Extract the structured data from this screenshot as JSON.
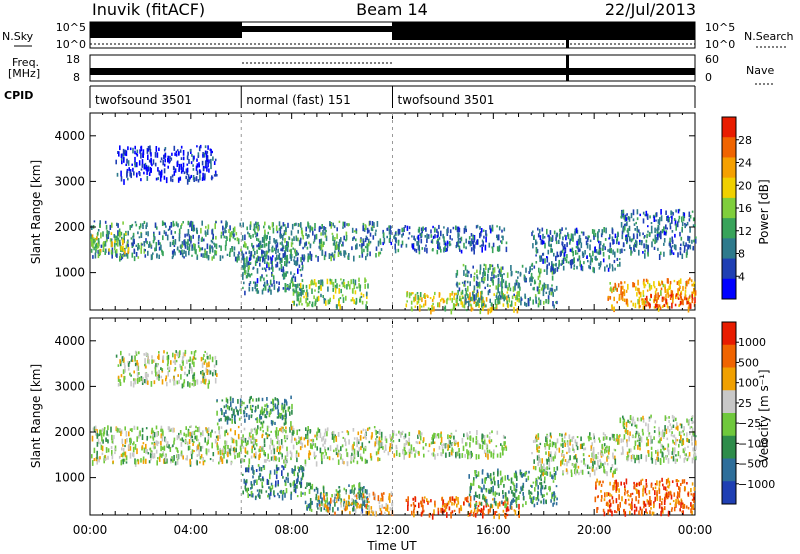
{
  "header": {
    "station": "Inuvik (fitACF)",
    "beam": "Beam 14",
    "date": "22/Jul/2013"
  },
  "noise_panel": {
    "left_label": "N.Sky",
    "left_ticks": [
      "10^5",
      "10^0"
    ],
    "right_label": "N.Search",
    "right_ticks": [
      "10^5",
      "10^0"
    ]
  },
  "freq_panel": {
    "left_label_line1": "Freq.",
    "left_label_line2": "[MHz]",
    "left_ticks": [
      "18",
      "8"
    ],
    "right_label": "Nave",
    "right_ticks": [
      "60",
      "0"
    ]
  },
  "cpid_panel": {
    "label": "CPID",
    "segments": [
      {
        "label": "twofsound 3501",
        "start_h": 0,
        "end_h": 6
      },
      {
        "label": "normal (fast) 151",
        "start_h": 6,
        "end_h": 12
      },
      {
        "label": "twofsound 3501",
        "start_h": 12,
        "end_h": 24
      }
    ]
  },
  "chart_data": [
    {
      "type": "heatmap",
      "name": "power",
      "ylabel": "Slant Range [km]",
      "yticks": [
        1000,
        2000,
        3000,
        4000
      ],
      "ylim": [
        180,
        4500
      ],
      "xlim": [
        0,
        24
      ],
      "colorbar": {
        "label": "Power [dB]",
        "ticks": [
          "28",
          "24",
          "20",
          "16",
          "12",
          "8",
          "4"
        ],
        "colors": [
          "#0000ff",
          "#1f3fb3",
          "#2e7a8c",
          "#38a35a",
          "#7fce3c",
          "#f0d000",
          "#f5a000",
          "#f06400",
          "#e81c00"
        ]
      },
      "regions": [
        {
          "x0": 0.0,
          "x1": 11.5,
          "y0": 1350,
          "y1": 2150,
          "level": 0.32
        },
        {
          "x0": 0.0,
          "x1": 1.5,
          "y0": 1450,
          "y1": 1900,
          "level": 0.55
        },
        {
          "x0": 1.0,
          "x1": 5.0,
          "y0": 3050,
          "y1": 3800,
          "level": 0.08
        },
        {
          "x0": 6.0,
          "x1": 8.5,
          "y0": 600,
          "y1": 1500,
          "level": 0.28
        },
        {
          "x0": 8.0,
          "x1": 11.0,
          "y0": 300,
          "y1": 900,
          "level": 0.45
        },
        {
          "x0": 11.5,
          "x1": 16.5,
          "y0": 1500,
          "y1": 2050,
          "level": 0.22
        },
        {
          "x0": 12.5,
          "x1": 17.0,
          "y0": 200,
          "y1": 600,
          "level": 0.6
        },
        {
          "x0": 14.5,
          "x1": 18.5,
          "y0": 300,
          "y1": 1200,
          "level": 0.35
        },
        {
          "x0": 17.5,
          "x1": 21.0,
          "y0": 1100,
          "y1": 2000,
          "level": 0.25
        },
        {
          "x0": 20.5,
          "x1": 24.0,
          "y0": 250,
          "y1": 900,
          "level": 0.7
        },
        {
          "x0": 22.0,
          "x1": 24.0,
          "y0": 300,
          "y1": 550,
          "level": 0.95
        },
        {
          "x0": 21.0,
          "x1": 24.0,
          "y0": 1400,
          "y1": 2400,
          "level": 0.25
        }
      ]
    },
    {
      "type": "heatmap",
      "name": "velocity",
      "ylabel": "Slant Range [km]",
      "xlabel": "Time UT",
      "yticks": [
        1000,
        2000,
        3000,
        4000
      ],
      "ylim": [
        180,
        4500
      ],
      "xlim": [
        0,
        24
      ],
      "xticks": [
        "00:00",
        "04:00",
        "08:00",
        "12:00",
        "16:00",
        "20:00",
        "00:00"
      ],
      "colorbar": {
        "label": "Velocity [m s⁻¹]",
        "ticks": [
          "1000",
          "500",
          "100",
          "25",
          "−25",
          "−100",
          "−500",
          "−1000"
        ],
        "colors": [
          "#1f3fb3",
          "#2e6e9a",
          "#2e8c4a",
          "#6fc83c",
          "#c8c8c8",
          "#f0a000",
          "#f06400",
          "#e81c00"
        ]
      },
      "regions": [
        {
          "x0": 0.0,
          "x1": 11.5,
          "y0": 1350,
          "y1": 2150,
          "level": 0.5
        },
        {
          "x0": 1.0,
          "x1": 5.0,
          "y0": 3050,
          "y1": 3800,
          "level": 0.5
        },
        {
          "x0": 11.5,
          "x1": 16.5,
          "y0": 1500,
          "y1": 2050,
          "level": 0.5
        },
        {
          "x0": 6.0,
          "x1": 8.5,
          "y0": 600,
          "y1": 1300,
          "level": 0.25
        },
        {
          "x0": 8.5,
          "x1": 11.0,
          "y0": 300,
          "y1": 900,
          "level": 0.28
        },
        {
          "x0": 5.0,
          "x1": 8.0,
          "y0": 2200,
          "y1": 2800,
          "level": 0.3
        },
        {
          "x0": 9.0,
          "x1": 12.0,
          "y0": 250,
          "y1": 700,
          "level": 0.65
        },
        {
          "x0": 12.5,
          "x1": 17.0,
          "y0": 200,
          "y1": 600,
          "level": 0.8
        },
        {
          "x0": 15.0,
          "x1": 18.5,
          "y0": 400,
          "y1": 1200,
          "level": 0.3
        },
        {
          "x0": 17.5,
          "x1": 21.0,
          "y0": 1100,
          "y1": 2000,
          "level": 0.5
        },
        {
          "x0": 20.0,
          "x1": 24.0,
          "y0": 250,
          "y1": 1000,
          "level": 0.8
        },
        {
          "x0": 21.0,
          "x1": 24.0,
          "y0": 1400,
          "y1": 2400,
          "level": 0.5
        }
      ]
    }
  ]
}
